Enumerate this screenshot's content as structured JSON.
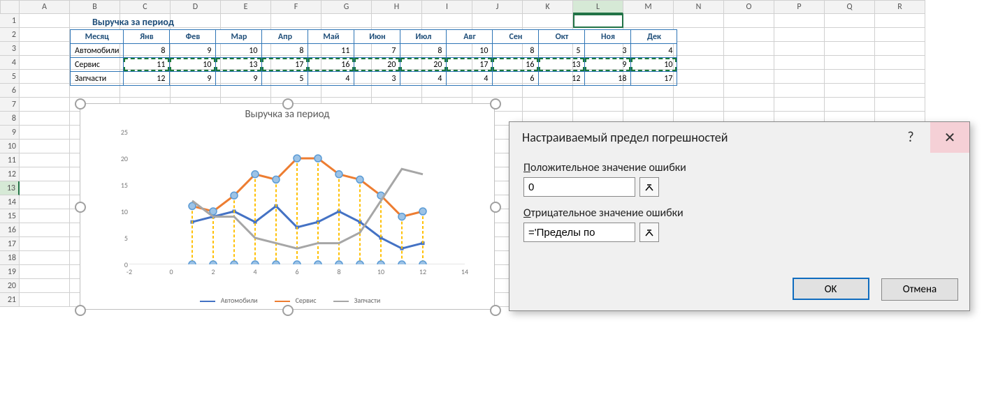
{
  "columns": [
    "A",
    "B",
    "C",
    "D",
    "E",
    "F",
    "G",
    "H",
    "I",
    "J",
    "K",
    "L",
    "M",
    "N",
    "O",
    "P",
    "Q",
    "R"
  ],
  "active_col": "L",
  "sel_row": 13,
  "row_count": 21,
  "table": {
    "title": "Выручка за период",
    "months": [
      "Месяц",
      "Янв",
      "Фев",
      "Мар",
      "Апр",
      "Май",
      "Июн",
      "Июл",
      "Авг",
      "Сен",
      "Окт",
      "Ноя",
      "Дек"
    ],
    "rows": [
      {
        "label": "Автомобили",
        "values": [
          8,
          9,
          10,
          8,
          11,
          7,
          8,
          10,
          8,
          5,
          3,
          4
        ]
      },
      {
        "label": "Сервис",
        "values": [
          11,
          10,
          13,
          17,
          16,
          20,
          20,
          17,
          16,
          13,
          9,
          10
        ]
      },
      {
        "label": "Запчасти",
        "values": [
          12,
          9,
          9,
          5,
          4,
          3,
          4,
          4,
          6,
          12,
          18,
          17
        ]
      }
    ],
    "marching_row_index": 1,
    "border_color": "#2e75b6",
    "header_text_color": "#1f4e79",
    "marching_color": "#1a7a3a"
  },
  "chart": {
    "title": "Выручка за период",
    "type": "line",
    "x": [
      1,
      2,
      3,
      4,
      5,
      6,
      7,
      8,
      9,
      10,
      11,
      12
    ],
    "xlim": [
      -2,
      14
    ],
    "ylim": [
      0,
      25
    ],
    "ytick_step": 5,
    "xtick_step": 2,
    "xticks": [
      -2,
      0,
      2,
      4,
      6,
      8,
      10,
      12,
      14
    ],
    "background_color": "#ffffff",
    "tick_color": "#777777",
    "title_color": "#595959",
    "title_fontsize": 15,
    "tick_fontsize": 10,
    "series": [
      {
        "name": "Автомобили",
        "color": "#4472c4",
        "line_width": 3,
        "values": [
          8,
          9,
          10,
          8,
          11,
          7,
          8,
          10,
          8,
          5,
          3,
          4
        ],
        "marker": "square",
        "marker_size": 5
      },
      {
        "name": "Сервис",
        "color": "#ed7d31",
        "line_width": 3,
        "values": [
          11,
          10,
          13,
          17,
          16,
          20,
          20,
          17,
          16,
          13,
          9,
          10
        ],
        "marker": "circle",
        "marker_size": 5,
        "drop_markers": {
          "stroke": "#5b9bd5",
          "fill": "#9dc3e6",
          "radius": 5
        },
        "drop_lines": {
          "stroke": "#ffc000",
          "width": 2,
          "dash": "4 3"
        }
      },
      {
        "name": "Запчасти",
        "color": "#a6a6a6",
        "line_width": 3,
        "values": [
          12,
          9,
          9,
          5,
          4,
          3,
          4,
          4,
          6,
          12,
          18,
          17
        ],
        "marker": "none"
      }
    ],
    "selection_handles": true,
    "handle_stroke": "#a0a0a0",
    "legend_position": "bottom"
  },
  "dialog": {
    "title": "Настраиваемый предел погрешностей",
    "help": "?",
    "close": "✕",
    "pos_label_pre": "П",
    "pos_label_rest": "оложительное значение ошибки",
    "pos_value": "0",
    "neg_label_pre": "О",
    "neg_label_rest": "трицательное значение ошибки",
    "neg_value": "='Пределы по",
    "ok": "OK",
    "cancel": "Отмена",
    "bg": "#f0f0f0",
    "close_bg": "#f5d0d6",
    "primary_border": "#0f6cbf"
  }
}
